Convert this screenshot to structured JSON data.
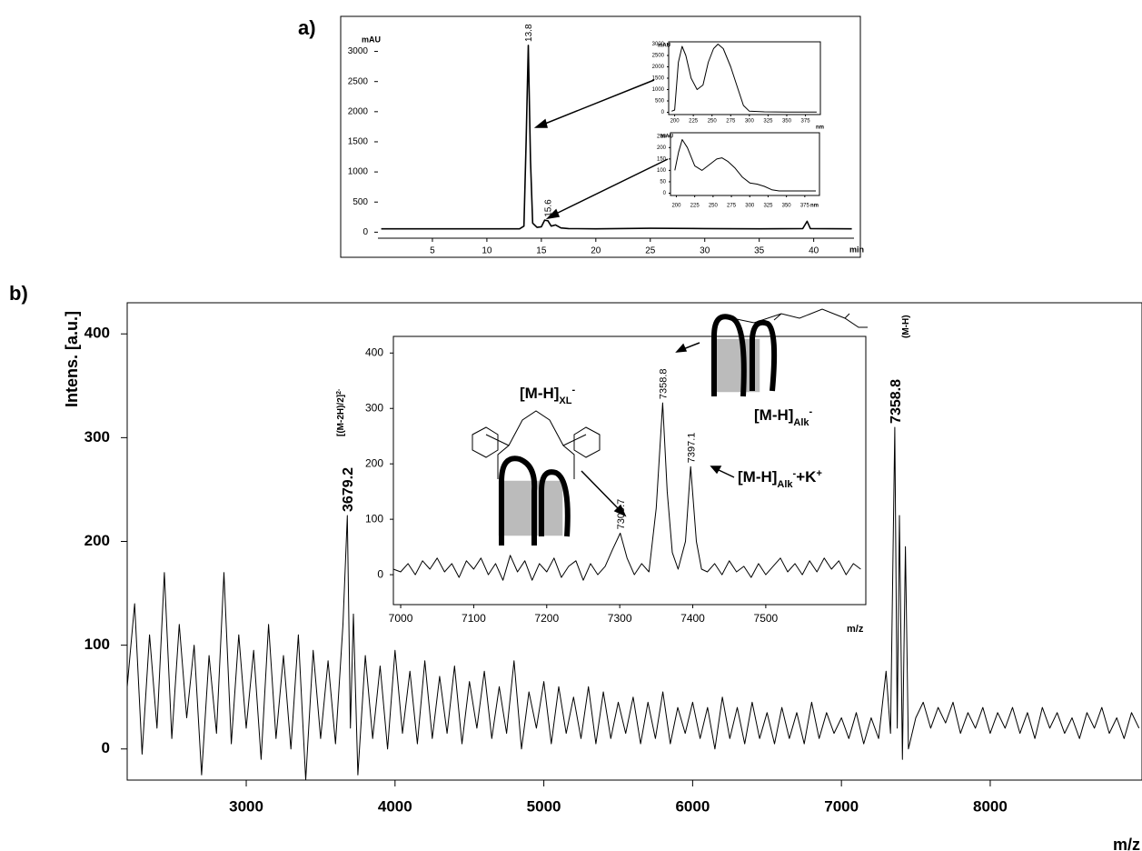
{
  "chart_data": [
    {
      "type": "line",
      "panel_label": "a)",
      "xlabel": "min",
      "ylabel": "mAU",
      "color": "#000000",
      "x": [
        0.3,
        5,
        10,
        13.0,
        13.4,
        13.6,
        13.8,
        14.0,
        14.2,
        14.6,
        15.0,
        15.3,
        15.6,
        15.9,
        16.3,
        16.8,
        17.5,
        20,
        25,
        30,
        35,
        39.0,
        39.4,
        39.7,
        43.5
      ],
      "values": [
        55,
        55,
        55,
        55,
        100,
        1500,
        3100,
        1200,
        150,
        80,
        90,
        200,
        190,
        100,
        120,
        70,
        60,
        55,
        65,
        60,
        55,
        60,
        180,
        60,
        55
      ],
      "peaks": [
        13.8,
        15.6
      ],
      "xlim": [
        0,
        43.7
      ],
      "ylim": [
        -100,
        3250
      ],
      "xticks": [
        5,
        10,
        15,
        20,
        25,
        30,
        35,
        40
      ],
      "yticks": [
        0,
        500,
        1000,
        1500,
        2000,
        2500,
        3000
      ]
    },
    {
      "type": "line",
      "xlabel": "nm",
      "ylabel": "mAU",
      "color": "#000000",
      "x": [
        196,
        200,
        205,
        210,
        215,
        222,
        230,
        238,
        245,
        252,
        258,
        265,
        275,
        285,
        292,
        300,
        320,
        350,
        390
      ],
      "values": [
        50,
        100,
        2200,
        2900,
        2500,
        1500,
        1000,
        1200,
        2200,
        2800,
        3000,
        2800,
        2000,
        1000,
        300,
        50,
        20,
        10,
        10
      ],
      "xlim": [
        192,
        395
      ],
      "ylim": [
        -100,
        3100
      ],
      "xticks": [
        200,
        225,
        250,
        275,
        300,
        325,
        350,
        375
      ],
      "yticks": [
        0,
        500,
        1000,
        1500,
        2000,
        2500,
        3000
      ]
    },
    {
      "type": "line",
      "xlabel": "nm",
      "ylabel": "mAU",
      "color": "#000000",
      "x": [
        198,
        203,
        208,
        215,
        225,
        235,
        245,
        255,
        262,
        270,
        280,
        290,
        300,
        310,
        320,
        330,
        340,
        390
      ],
      "values": [
        100,
        180,
        235,
        200,
        120,
        100,
        125,
        150,
        155,
        140,
        110,
        70,
        45,
        40,
        30,
        15,
        10,
        10
      ],
      "xlim": [
        192,
        395
      ],
      "ylim": [
        -10,
        265
      ],
      "xticks": [
        200,
        225,
        250,
        275,
        300,
        325,
        350,
        375
      ],
      "yticks": [
        0,
        50,
        100,
        150,
        200,
        250
      ]
    },
    {
      "type": "line",
      "panel_label": "b)",
      "xlabel": "m/z",
      "ylabel": "Intens. [a.u.]",
      "color": "#000000",
      "x": [
        2200,
        2250,
        2300,
        2350,
        2400,
        2450,
        2500,
        2550,
        2600,
        2650,
        2700,
        2750,
        2800,
        2850,
        2900,
        2950,
        3000,
        3050,
        3100,
        3150,
        3200,
        3250,
        3300,
        3350,
        3400,
        3450,
        3500,
        3550,
        3600,
        3650,
        3679.2,
        3700,
        3720,
        3750,
        3800,
        3850,
        3900,
        3950,
        4000,
        4050,
        4100,
        4150,
        4200,
        4250,
        4300,
        4350,
        4400,
        4450,
        4500,
        4550,
        4600,
        4650,
        4700,
        4750,
        4800,
        4850,
        4900,
        4950,
        5000,
        5050,
        5100,
        5150,
        5200,
        5250,
        5300,
        5350,
        5400,
        5450,
        5500,
        5550,
        5600,
        5650,
        5700,
        5750,
        5800,
        5850,
        5900,
        5950,
        6000,
        6050,
        6100,
        6150,
        6200,
        6250,
        6300,
        6350,
        6400,
        6450,
        6500,
        6550,
        6600,
        6650,
        6700,
        6750,
        6800,
        6850,
        6900,
        6950,
        7000,
        7050,
        7100,
        7150,
        7200,
        7250,
        7300,
        7330,
        7358.8,
        7375,
        7390,
        7410,
        7430,
        7450,
        7500,
        7550,
        7600,
        7650,
        7700,
        7750,
        7800,
        7850,
        7900,
        7950,
        8000,
        8050,
        8100,
        8150,
        8200,
        8250,
        8300,
        8350,
        8400,
        8450,
        8500,
        8550,
        8600,
        8650,
        8700,
        8750,
        8800,
        8850,
        8900,
        8950,
        9000
      ],
      "values": [
        60,
        140,
        -5,
        110,
        20,
        170,
        10,
        120,
        30,
        100,
        -25,
        90,
        15,
        170,
        5,
        110,
        20,
        95,
        -10,
        120,
        10,
        90,
        0,
        110,
        -30,
        95,
        10,
        85,
        5,
        120,
        225,
        20,
        130,
        -25,
        90,
        10,
        80,
        0,
        95,
        15,
        75,
        5,
        85,
        10,
        70,
        15,
        80,
        5,
        65,
        20,
        75,
        10,
        60,
        15,
        85,
        0,
        55,
        20,
        65,
        5,
        60,
        15,
        50,
        10,
        60,
        5,
        55,
        10,
        45,
        15,
        50,
        5,
        45,
        10,
        55,
        5,
        40,
        15,
        45,
        10,
        40,
        0,
        50,
        10,
        40,
        5,
        45,
        10,
        35,
        5,
        40,
        10,
        35,
        5,
        45,
        10,
        35,
        15,
        30,
        10,
        35,
        5,
        30,
        10,
        75,
        15,
        310,
        20,
        225,
        -10,
        195,
        0,
        30,
        45,
        20,
        40,
        25,
        45,
        15,
        35,
        20,
        40,
        15,
        35,
        20,
        40,
        15,
        35,
        10,
        40,
        20,
        35,
        15,
        30,
        10,
        35,
        20,
        40,
        15,
        30,
        10,
        35,
        20
      ],
      "peaks": [
        3679.2,
        7358.8
      ],
      "annotations": [
        [
          {
            "text": "[(M-2H)/2]"
          },
          {
            "text": "2-",
            "shift": "super"
          }
        ],
        [
          {
            "text": "(M-H)"
          }
        ]
      ],
      "xlim": [
        2200,
        9020
      ],
      "ylim": [
        -30,
        430
      ],
      "xticks": [
        3000,
        4000,
        5000,
        6000,
        7000,
        8000
      ],
      "yticks": [
        0,
        100,
        200,
        300,
        400
      ]
    },
    {
      "type": "line",
      "xlabel": "m/z",
      "color": "#000000",
      "x": [
        6990,
        7000,
        7010,
        7020,
        7030,
        7040,
        7050,
        7060,
        7070,
        7080,
        7090,
        7100,
        7110,
        7120,
        7130,
        7140,
        7150,
        7160,
        7170,
        7180,
        7190,
        7200,
        7210,
        7220,
        7230,
        7240,
        7250,
        7260,
        7270,
        7280,
        7290,
        7300.7,
        7310,
        7320,
        7330,
        7340,
        7350,
        7358.8,
        7365,
        7372,
        7380,
        7390,
        7397.1,
        7405,
        7412,
        7420,
        7430,
        7440,
        7450,
        7460,
        7470,
        7480,
        7490,
        7500,
        7510,
        7520,
        7530,
        7540,
        7550,
        7560,
        7570,
        7580,
        7590,
        7600,
        7610,
        7620,
        7630
      ],
      "values": [
        10,
        5,
        20,
        0,
        25,
        10,
        30,
        5,
        20,
        -5,
        25,
        10,
        30,
        0,
        20,
        -10,
        35,
        5,
        25,
        -10,
        20,
        5,
        30,
        -5,
        15,
        25,
        -10,
        20,
        0,
        15,
        45,
        75,
        30,
        0,
        20,
        5,
        120,
        310,
        150,
        40,
        10,
        60,
        195,
        60,
        10,
        5,
        20,
        0,
        25,
        5,
        15,
        -5,
        20,
        0,
        15,
        30,
        5,
        20,
        0,
        25,
        5,
        30,
        10,
        25,
        0,
        20,
        10
      ],
      "peaks": [
        7300.7,
        7358.8,
        7397.1
      ],
      "annotations": [
        [
          {
            "text": "[M-H]"
          },
          {
            "text": "XL",
            "shift": "sub"
          },
          {
            "text": "-",
            "shift": "super"
          }
        ],
        [
          {
            "text": "[M-H]"
          },
          {
            "text": "Alk",
            "shift": "sub"
          },
          {
            "text": "-",
            "shift": "super"
          }
        ],
        [
          {
            "text": "[M-H]"
          },
          {
            "text": "Alk",
            "shift": "sub"
          },
          {
            "text": "-",
            "shift": "super"
          },
          {
            "text": "+K"
          },
          {
            "text": "+",
            "shift": "super"
          }
        ]
      ],
      "xlim": [
        6990,
        7637
      ],
      "ylim": [
        -54,
        430
      ],
      "xticks": [
        7000,
        7100,
        7200,
        7300,
        7400,
        7500
      ],
      "yticks": [
        0,
        100,
        200,
        300,
        400
      ]
    }
  ]
}
